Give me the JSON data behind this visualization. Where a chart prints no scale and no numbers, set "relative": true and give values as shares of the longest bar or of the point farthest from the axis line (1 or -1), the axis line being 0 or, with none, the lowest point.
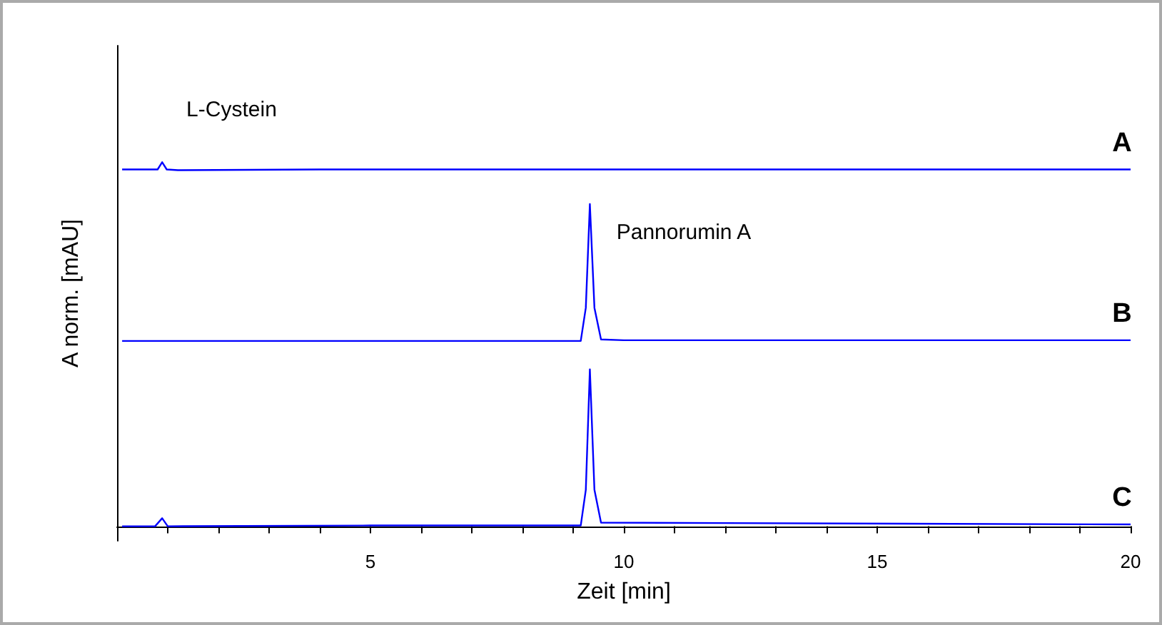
{
  "chart_data": {
    "type": "line",
    "relative": true,
    "xlabel": "Zeit [min]",
    "ylabel": "A norm. [mAU]",
    "xlim": [
      0,
      20
    ],
    "xticks": [
      {
        "value": 1,
        "label": null
      },
      {
        "value": 2,
        "label": null
      },
      {
        "value": 3,
        "label": null
      },
      {
        "value": 4,
        "label": null
      },
      5,
      {
        "value": 6,
        "label": null
      },
      {
        "value": 7,
        "label": null
      },
      {
        "value": 8,
        "label": null
      },
      {
        "value": 9,
        "label": null
      },
      10,
      {
        "value": 11,
        "label": null
      },
      {
        "value": 12,
        "label": null
      },
      {
        "value": 13,
        "label": null
      },
      {
        "value": 14,
        "label": null
      },
      15,
      {
        "value": 16,
        "label": null
      },
      {
        "value": 17,
        "label": null
      },
      {
        "value": 18,
        "label": null
      },
      {
        "value": 19,
        "label": null
      },
      20
    ],
    "series": [
      {
        "name": "A",
        "color": "#0000ff",
        "x": [
          0.1,
          0.6,
          0.8,
          0.89,
          0.98,
          1.2,
          4,
          20
        ],
        "values": [
          0.98,
          0.98,
          0.98,
          1.0,
          0.98,
          0.978,
          0.98,
          0.98
        ]
      },
      {
        "name": "B",
        "color": "#0000ff",
        "x": [
          0.1,
          5,
          9.15,
          9.25,
          9.33,
          9.42,
          9.55,
          10,
          20
        ],
        "values": [
          0.509,
          0.509,
          0.509,
          0.6,
          0.885,
          0.6,
          0.513,
          0.511,
          0.511
        ]
      },
      {
        "name": "C",
        "color": "#0000ff",
        "x": [
          0.1,
          0.75,
          0.89,
          1.0,
          5,
          9.15,
          9.25,
          9.33,
          9.42,
          9.55,
          20
        ],
        "values": [
          0,
          0,
          0.022,
          0,
          0.002,
          0.002,
          0.1,
          0.431,
          0.1,
          0.01,
          0.005
        ]
      }
    ],
    "annotations": [
      "L-Cystein",
      "Pannorumin A"
    ],
    "grid": false,
    "legend": false
  }
}
